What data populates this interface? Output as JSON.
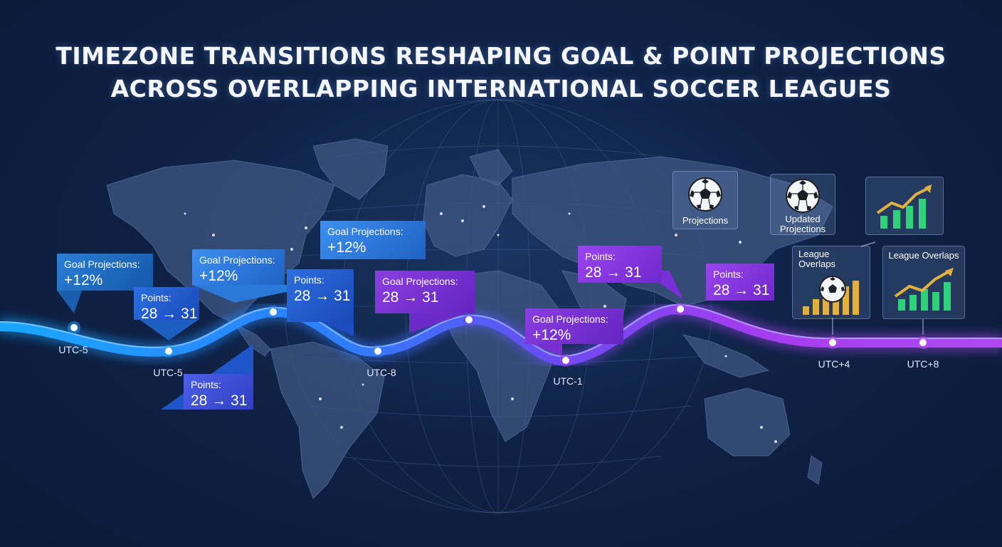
{
  "title": {
    "line1": "TIMEZONE TRANSITIONS RESHAPING GOAL & POINT PROJECTIONS",
    "line2": "ACROSS OVERLAPPING INTERNATIONAL SOCCER LEAGUES"
  },
  "callouts": [
    {
      "label": "Goal Projections:",
      "value": "+12%"
    },
    {
      "label": "Points:",
      "value": "28 → 31"
    },
    {
      "label": "Goal Projections:",
      "value": "+12%"
    },
    {
      "label": "Points:",
      "value": "28 → 31"
    },
    {
      "label": "Points:",
      "value": "28 → 31"
    },
    {
      "label": "Goal Projections:",
      "value": "+12%"
    },
    {
      "label": "Goal Projections:",
      "value": "28 → 31"
    },
    {
      "label": "Points:",
      "value": "28 → 31"
    },
    {
      "label": "Goal Projections:",
      "value": "+12%"
    },
    {
      "label": "Points:",
      "value": "28 → 31"
    }
  ],
  "timezones": [
    "UTC-5",
    "UTC-5",
    "UTC-8",
    "UTC-1",
    "UTC+4",
    "UTC+8"
  ],
  "cards": {
    "projections": "Projections",
    "updated_line1": "Updated",
    "updated_line2": "Projections",
    "league_line1": "League",
    "league_line2": "Overlaps",
    "league_overlaps": "League Overlaps"
  },
  "colors": {
    "background": "#0f2246",
    "blue_accent": "#2f8cff",
    "purple_accent": "#a23cf0",
    "bar_green": "#2fd27a",
    "bar_gold": "#e0b040"
  },
  "icons": [
    "soccer-ball-icon",
    "growth-chart-icon",
    "bar-chart-icon"
  ]
}
